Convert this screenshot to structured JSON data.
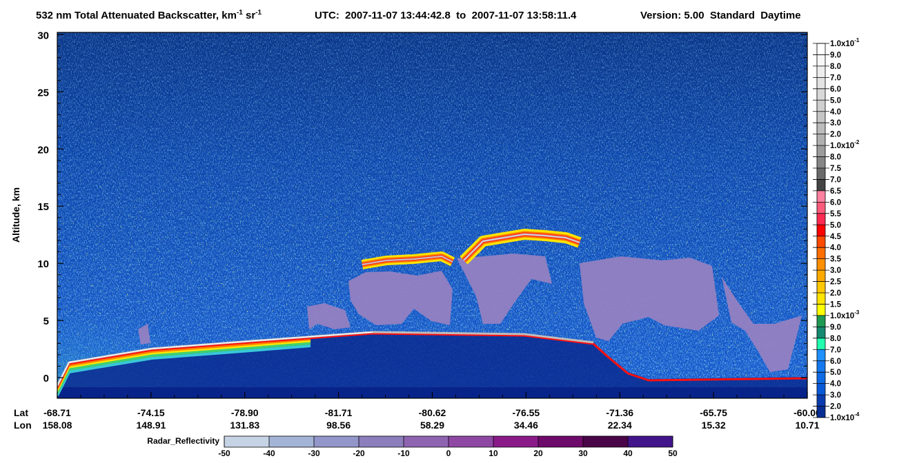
{
  "title": {
    "text": "532 nm Total Attenuated Backscatter, km",
    "unit_exponent": "-1",
    "unit2": "sr",
    "unit2_exponent": "-1",
    "time_range": "UTC:  2007-11-07 13:44:42.8  to  2007-11-07 13:58:11.4",
    "version": "Version: 5.00  Standard  Daytime"
  },
  "y_axis": {
    "label": "Altitude, km",
    "ylim": [
      -1.8,
      30.2
    ],
    "ticks": [
      0,
      5,
      10,
      15,
      20,
      25,
      30
    ]
  },
  "x_axis": {
    "row_labels": [
      "Lat",
      "Lon"
    ],
    "lat": [
      "-68.71",
      "-74.15",
      "-78.90",
      "-81.71",
      "-80.62",
      "-76.55",
      "-71.36",
      "-65.75",
      "-60.00"
    ],
    "lon": [
      "158.08",
      "148.91",
      "131.83",
      "98.56",
      "58.29",
      "34.46",
      "22.34",
      "15.32",
      "10.71"
    ]
  },
  "backscatter_colorbar": {
    "labels": [
      {
        "mantissa": "1.0x10",
        "exponent": "-1"
      },
      "9.0",
      "8.0",
      "7.0",
      "6.0",
      "5.0",
      "4.0",
      "3.0",
      "2.0",
      {
        "mantissa": "1.0x10",
        "exponent": "-2"
      },
      "8.0",
      "7.5",
      "7.0",
      "6.5",
      "6.0",
      "5.5",
      "5.0",
      "4.5",
      "4.0",
      "3.5",
      "3.0",
      "2.5",
      "2.0",
      "1.5",
      {
        "mantissa": "1.0x10",
        "exponent": "-3"
      },
      "9.0",
      "8.0",
      "7.0",
      "6.0",
      "5.0",
      "4.0",
      "3.0",
      "2.0",
      {
        "mantissa": "1.0x10",
        "exponent": "-4"
      }
    ],
    "colors": [
      "#ffffff",
      "#f7f7f7",
      "#ededed",
      "#e3e3e3",
      "#d9d9d9",
      "#cfcfcf",
      "#c5c5c5",
      "#bbbbbb",
      "#b0b0b0",
      "#9c9c9c",
      "#868686",
      "#6a6a6a",
      "#444444",
      "#ff80a0",
      "#ff5a7a",
      "#ff2a52",
      "#ff0000",
      "#ff4a00",
      "#ff6e00",
      "#ff8e00",
      "#ffaa00",
      "#ffc800",
      "#ffe400",
      "#ffff00",
      "#1f9a52",
      "#158a70",
      "#20ffb0",
      "#1e90ff",
      "#1478f0",
      "#0f6ae6",
      "#0a5ad8",
      "#0a3cb0",
      "#082e94"
    ]
  },
  "radar_colorbar": {
    "label": "Radar_Reflectivity",
    "ticks": [
      -50,
      -40,
      -30,
      -20,
      -10,
      0,
      10,
      20,
      30,
      40,
      50
    ],
    "colors": [
      "#c6d3e5",
      "#a4b4d6",
      "#9296c8",
      "#8c7ebc",
      "#8e64b0",
      "#8e48a4",
      "#8a1a88",
      "#6e0a6a",
      "#4a0548",
      "#42148a"
    ]
  }
}
